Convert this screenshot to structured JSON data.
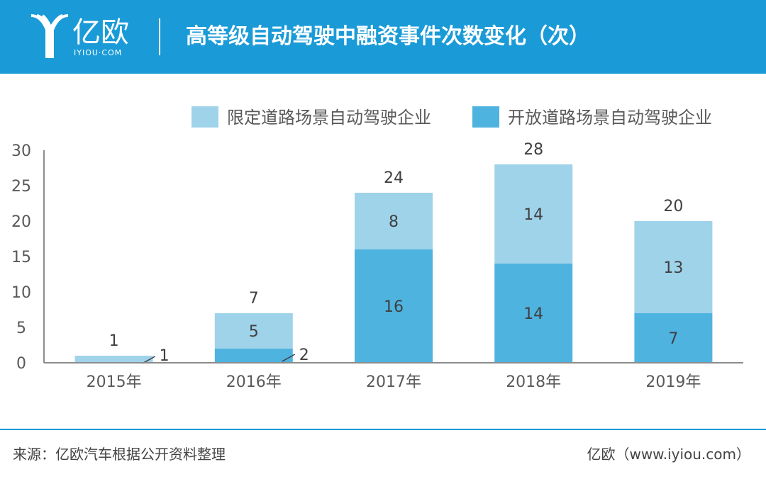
{
  "header": {
    "brand": "亿欧",
    "brand_url": "IYIOU·COM",
    "title": "高等级自动驾驶中融资事件次数变化（次）"
  },
  "footer": {
    "source": "来源：亿欧汽车根据公开资料整理",
    "credit": "亿欧（www.iyiou.com）"
  },
  "colors": {
    "header_bg": "#1a9bd7",
    "restricted": "#9fd3ea",
    "open": "#4fb3e0",
    "axis_text": "#595959"
  },
  "chart_data": {
    "type": "bar",
    "stacked": true,
    "categories": [
      "2015年",
      "2016年",
      "2017年",
      "2018年",
      "2019年"
    ],
    "series": [
      {
        "name": "开放道路场景自动驾驶企业",
        "values": [
          0,
          2,
          16,
          14,
          7
        ]
      },
      {
        "name": "限定道路场景自动驾驶企业",
        "values": [
          1,
          5,
          8,
          14,
          13
        ]
      }
    ],
    "totals": [
      1,
      7,
      24,
      28,
      20
    ],
    "ylim": [
      0,
      30
    ],
    "yticks": [
      0,
      5,
      10,
      15,
      20,
      25,
      30
    ],
    "legend": [
      {
        "name": "限定道路场景自动驾驶企业",
        "color": "#9fd3ea"
      },
      {
        "name": "开放道路场景自动驾驶企业",
        "color": "#4fb3e0"
      }
    ],
    "legend_position": "top-right",
    "grid": false
  }
}
